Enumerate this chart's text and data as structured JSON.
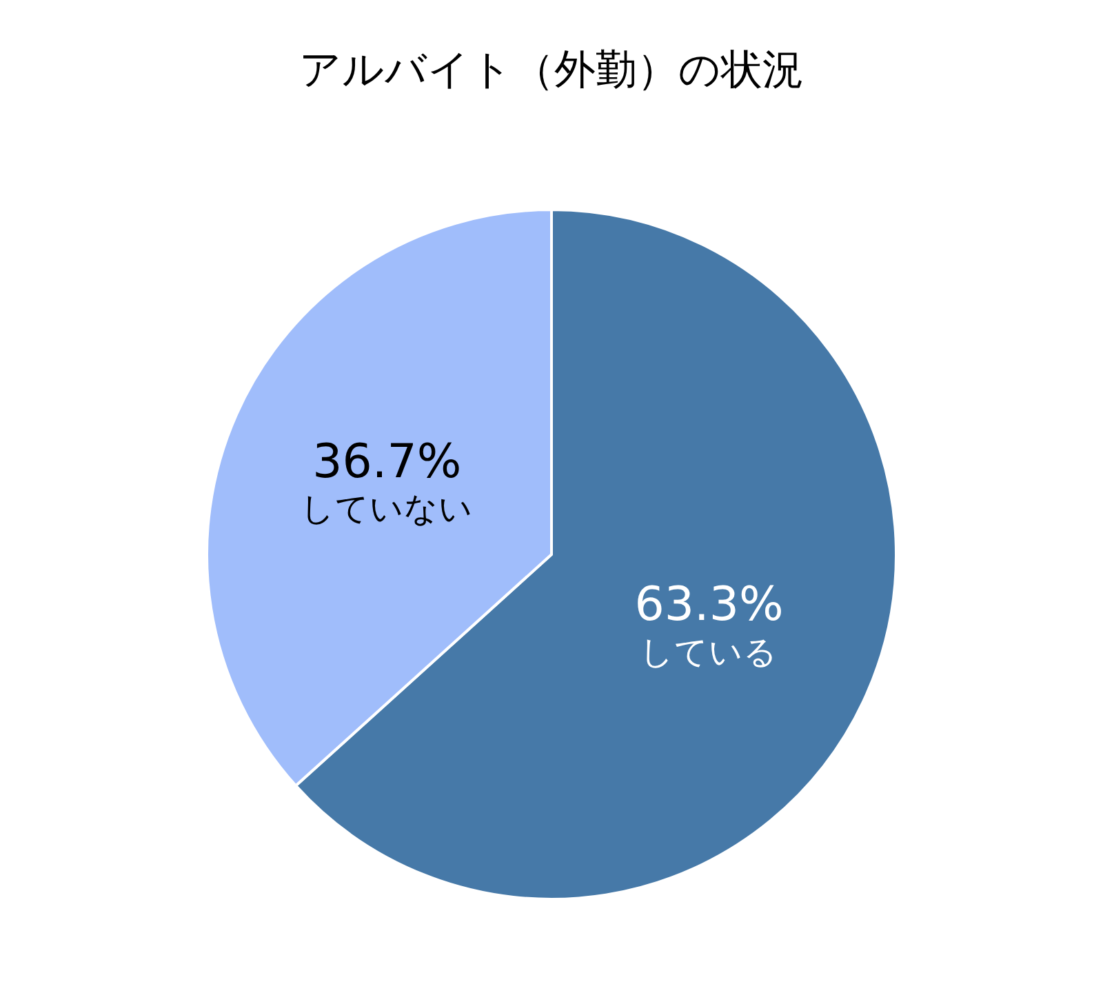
{
  "chart_data": {
    "type": "pie",
    "title": "アルバイト（外勤）の状況",
    "categories": [
      "している",
      "していない"
    ],
    "values": [
      63.3,
      36.7
    ],
    "value_labels": [
      "63.3%",
      "36.7%"
    ],
    "colors": [
      "#4679a8",
      "#a0bdfb"
    ],
    "legend": false
  }
}
